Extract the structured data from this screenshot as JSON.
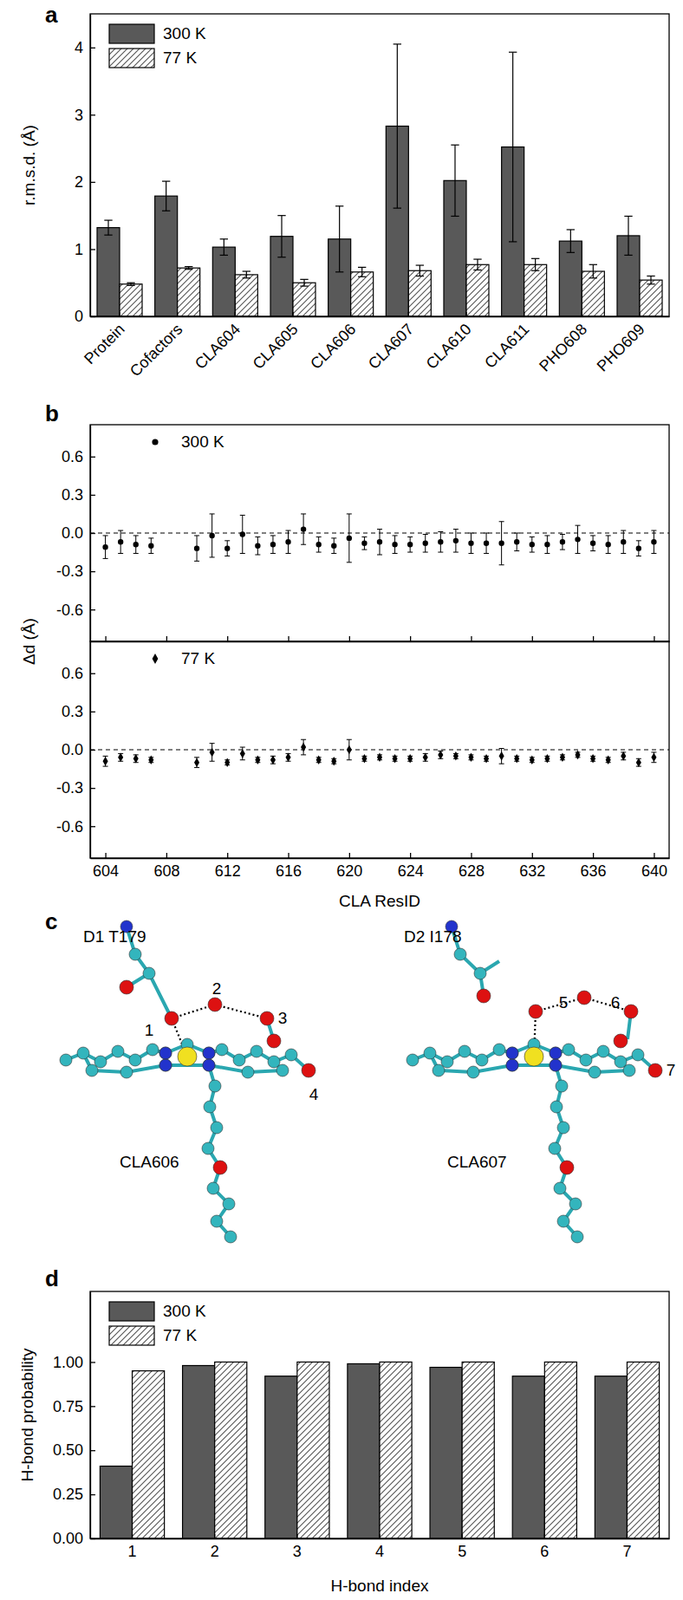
{
  "chart_data": [
    {
      "type": "bar",
      "panel": "a",
      "ylabel": "r.m.s.d. (Å)",
      "categories": [
        "Protein",
        "Cofactors",
        "CLA604",
        "CLA605",
        "CLA606",
        "CLA607",
        "CLA610",
        "CLA611",
        "PHO608",
        "PHO609"
      ],
      "series": [
        {
          "name": "300 K",
          "color": "#595959",
          "values": [
            1.32,
            1.79,
            1.03,
            1.19,
            1.15,
            2.83,
            2.02,
            2.52,
            1.12,
            1.2
          ],
          "errors": [
            0.11,
            0.22,
            0.12,
            0.31,
            0.49,
            1.22,
            0.53,
            1.41,
            0.17,
            0.29
          ]
        },
        {
          "name": "77 K",
          "color": "#ffffff",
          "values": [
            0.48,
            0.72,
            0.62,
            0.5,
            0.66,
            0.68,
            0.77,
            0.77,
            0.67,
            0.54
          ],
          "errors": [
            0.02,
            0.02,
            0.05,
            0.05,
            0.07,
            0.08,
            0.08,
            0.09,
            0.1,
            0.06
          ]
        }
      ],
      "ylim": [
        0,
        4.5
      ],
      "yticks": [
        0,
        1,
        2,
        3,
        4
      ],
      "legend": "upper left"
    },
    {
      "type": "scatter",
      "panel": "b",
      "ylabel": "Δd (Å)",
      "x": [
        604,
        605,
        606,
        607,
        610,
        611,
        612,
        613,
        614,
        615,
        616,
        617,
        618,
        619,
        620,
        621,
        622,
        623,
        624,
        625,
        626,
        627,
        628,
        629,
        630,
        631,
        632,
        633,
        634,
        635,
        636,
        637,
        638,
        639,
        640
      ],
      "series": [
        {
          "name": "300 K",
          "color": "#000000",
          "marker": "circle",
          "values": [
            -0.11,
            -0.07,
            -0.09,
            -0.1,
            -0.12,
            -0.02,
            -0.12,
            -0.01,
            -0.1,
            -0.09,
            -0.07,
            0.03,
            -0.09,
            -0.1,
            -0.04,
            -0.08,
            -0.07,
            -0.09,
            -0.09,
            -0.08,
            -0.07,
            -0.06,
            -0.08,
            -0.08,
            -0.08,
            -0.07,
            -0.09,
            -0.09,
            -0.07,
            -0.05,
            -0.08,
            -0.09,
            -0.07,
            -0.12,
            -0.07
          ],
          "errors": [
            0.09,
            0.09,
            0.07,
            0.06,
            0.1,
            0.17,
            0.06,
            0.15,
            0.07,
            0.07,
            0.09,
            0.12,
            0.06,
            0.06,
            0.19,
            0.05,
            0.1,
            0.07,
            0.06,
            0.07,
            0.08,
            0.09,
            0.08,
            0.08,
            0.17,
            0.07,
            0.06,
            0.07,
            0.06,
            0.11,
            0.06,
            0.07,
            0.09,
            0.06,
            0.09
          ]
        }
      ],
      "xlim": [
        603,
        641
      ],
      "xticks": [
        604,
        608,
        612,
        616,
        620,
        624,
        628,
        632,
        636,
        640
      ],
      "ylim": [
        -0.85,
        0.85
      ],
      "yticks": [
        -0.6,
        -0.3,
        {
          "value": 0,
          "label": "0.0"
        },
        0.3,
        0.6
      ],
      "hline": 0,
      "legend": "upper left",
      "tick_labels": "y"
    },
    {
      "type": "scatter",
      "xlabel": "CLA ResID",
      "x": [
        604,
        605,
        606,
        607,
        610,
        611,
        612,
        613,
        614,
        615,
        616,
        617,
        618,
        619,
        620,
        621,
        622,
        623,
        624,
        625,
        626,
        627,
        628,
        629,
        630,
        631,
        632,
        633,
        634,
        635,
        636,
        637,
        638,
        639,
        640
      ],
      "series": [
        {
          "name": "77 K",
          "color": "#000000",
          "marker": "diamond",
          "values": [
            -0.09,
            -0.06,
            -0.07,
            -0.08,
            -0.1,
            -0.02,
            -0.1,
            -0.03,
            -0.08,
            -0.08,
            -0.06,
            0.02,
            -0.08,
            -0.09,
            0.0,
            -0.07,
            -0.06,
            -0.07,
            -0.07,
            -0.06,
            -0.04,
            -0.05,
            -0.06,
            -0.07,
            -0.05,
            -0.07,
            -0.08,
            -0.07,
            -0.06,
            -0.04,
            -0.07,
            -0.08,
            -0.05,
            -0.1,
            -0.06
          ],
          "errors": [
            0.04,
            0.03,
            0.03,
            0.02,
            0.04,
            0.07,
            0.02,
            0.05,
            0.02,
            0.03,
            0.03,
            0.06,
            0.02,
            0.02,
            0.08,
            0.02,
            0.02,
            0.02,
            0.02,
            0.03,
            0.03,
            0.02,
            0.02,
            0.02,
            0.06,
            0.02,
            0.02,
            0.02,
            0.02,
            0.02,
            0.02,
            0.02,
            0.03,
            0.03,
            0.04
          ]
        }
      ],
      "xlim": [
        603,
        641
      ],
      "xticks": [
        604,
        608,
        612,
        616,
        620,
        624,
        628,
        632,
        636,
        640
      ],
      "ylim": [
        -0.85,
        0.85
      ],
      "yticks": [
        -0.6,
        -0.3,
        {
          "value": 0,
          "label": "0.0"
        },
        0.3,
        0.6
      ],
      "hline": 0,
      "legend": "upper left"
    },
    {
      "type": "diagram",
      "panel": "c",
      "molecules": [
        {
          "residue": "D1 T179",
          "cofactor": "CLA606",
          "hbonds": [
            "1",
            "2",
            "3",
            "4"
          ]
        },
        {
          "residue": "D2 I178",
          "cofactor": "CLA607",
          "hbonds": [
            "5",
            "6",
            "7"
          ]
        }
      ]
    },
    {
      "type": "bar",
      "panel": "d",
      "xlabel": "H-bond index",
      "ylabel": "H-bond probability",
      "categories": [
        "1",
        "2",
        "3",
        "4",
        "5",
        "6",
        "7"
      ],
      "series": [
        {
          "name": "300 K",
          "color": "#595959",
          "values": [
            0.41,
            0.98,
            0.92,
            0.99,
            0.97,
            0.92,
            0.92
          ]
        },
        {
          "name": "77 K",
          "color": "#ffffff",
          "values": [
            0.95,
            1.0,
            1.0,
            1.0,
            1.0,
            1.0,
            1.0
          ]
        }
      ],
      "ylim": [
        0,
        1.4
      ],
      "yticks": [
        {
          "value": 0,
          "label": "0.00"
        },
        {
          "value": 0.25,
          "label": "0.25"
        },
        {
          "value": 0.5,
          "label": "0.50"
        },
        {
          "value": 0.75,
          "label": "0.75"
        },
        {
          "value": 1,
          "label": "1.00"
        }
      ],
      "legend": "upper left"
    }
  ]
}
